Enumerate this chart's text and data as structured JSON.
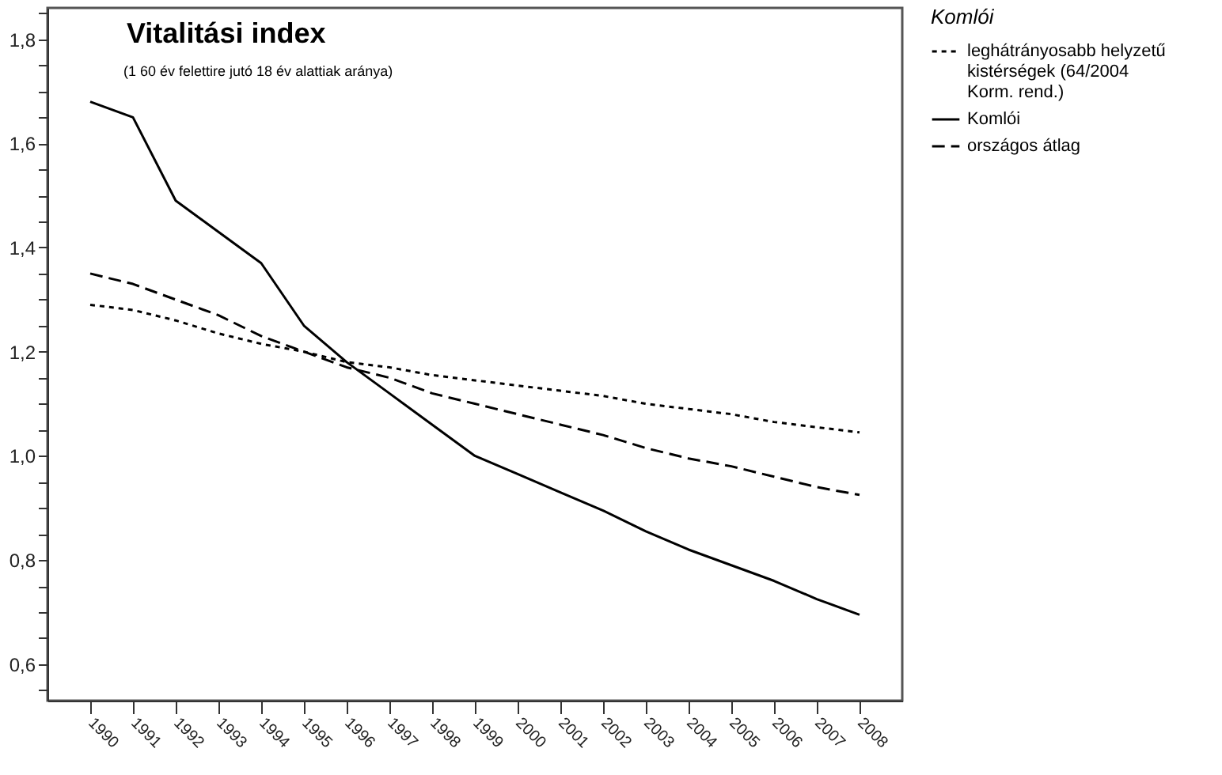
{
  "chart_data": {
    "type": "line",
    "title": "Vitalitási index",
    "subtitle": "(1 60 év felettire jutó 18 év alattiak aránya)",
    "legend_title": "Komlói",
    "legend": "right",
    "grid": false,
    "marker": "none",
    "x": [
      1990,
      1991,
      1992,
      1993,
      1994,
      1995,
      1996,
      1997,
      1998,
      1999,
      2000,
      2001,
      2002,
      2003,
      2004,
      2005,
      2006,
      2007,
      2008
    ],
    "xlim": [
      1989,
      2009
    ],
    "xticks": [
      1990,
      1991,
      1992,
      1993,
      1994,
      1995,
      1996,
      1997,
      1998,
      1999,
      2000,
      2001,
      2002,
      2003,
      2004,
      2005,
      2006,
      2007,
      2008
    ],
    "ylim": [
      0.53,
      1.86
    ],
    "yticks": [
      {
        "value": 0.55,
        "label": null
      },
      {
        "value": 0.6,
        "label": "0,6"
      },
      {
        "value": 0.65,
        "label": null
      },
      {
        "value": 0.7,
        "label": null
      },
      {
        "value": 0.75,
        "label": null
      },
      {
        "value": 0.8,
        "label": "0,8"
      },
      {
        "value": 0.85,
        "label": null
      },
      {
        "value": 0.9,
        "label": null
      },
      {
        "value": 0.95,
        "label": null
      },
      {
        "value": 1.0,
        "label": "1,0"
      },
      {
        "value": 1.05,
        "label": null
      },
      {
        "value": 1.1,
        "label": null
      },
      {
        "value": 1.15,
        "label": null
      },
      {
        "value": 1.2,
        "label": "1,2"
      },
      {
        "value": 1.25,
        "label": null
      },
      {
        "value": 1.3,
        "label": null
      },
      {
        "value": 1.35,
        "label": null
      },
      {
        "value": 1.4,
        "label": "1,4"
      },
      {
        "value": 1.45,
        "label": null
      },
      {
        "value": 1.5,
        "label": null
      },
      {
        "value": 1.55,
        "label": null
      },
      {
        "value": 1.6,
        "label": "1,6"
      },
      {
        "value": 1.65,
        "label": null
      },
      {
        "value": 1.7,
        "label": null
      },
      {
        "value": 1.75,
        "label": null
      },
      {
        "value": 1.8,
        "label": "1,8"
      },
      {
        "value": 1.85,
        "label": null
      }
    ],
    "series": [
      {
        "name": "leghátrányosabb helyzetű kistérségek (64/2004 Korm. rend.)",
        "color": "#000000",
        "line_style": "dotted",
        "values": [
          1.29,
          1.28,
          1.26,
          1.235,
          1.215,
          1.2,
          1.18,
          1.17,
          1.155,
          1.145,
          1.135,
          1.125,
          1.115,
          1.1,
          1.09,
          1.08,
          1.065,
          1.055,
          1.045
        ]
      },
      {
        "name": "Komlói",
        "color": "#000000",
        "line_style": "solid",
        "values": [
          1.68,
          1.65,
          1.49,
          1.43,
          1.37,
          1.25,
          1.18,
          1.12,
          1.06,
          1.0,
          0.965,
          0.93,
          0.895,
          0.855,
          0.82,
          0.79,
          0.76,
          0.725,
          0.695
        ]
      },
      {
        "name": "országos átlag",
        "color": "#000000",
        "line_style": "dashed",
        "values": [
          1.35,
          1.33,
          1.3,
          1.27,
          1.23,
          1.2,
          1.17,
          1.15,
          1.12,
          1.1,
          1.08,
          1.06,
          1.04,
          1.015,
          0.995,
          0.98,
          0.96,
          0.94,
          0.925
        ]
      }
    ]
  }
}
